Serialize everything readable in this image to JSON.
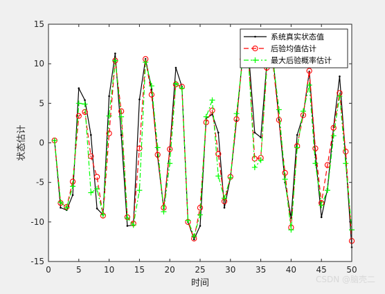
{
  "chart_data": {
    "type": "line",
    "xlabel": "时间",
    "ylabel": "状态估计",
    "xlim": [
      0,
      50
    ],
    "ylim": [
      -15,
      15
    ],
    "xticks": [
      0,
      5,
      10,
      15,
      20,
      25,
      30,
      35,
      40,
      45,
      50
    ],
    "yticks": [
      -15,
      -10,
      -5,
      0,
      5,
      10,
      15
    ],
    "grid": false,
    "legend_position": "top-right",
    "colors": {
      "figure_bg": "#f0f0f0",
      "axes_bg": "#ffffff",
      "true_state": "#000000",
      "posterior_mean": "#ff0000",
      "map_estimate": "#00ff00"
    },
    "x": [
      1,
      2,
      3,
      4,
      5,
      6,
      7,
      8,
      9,
      10,
      11,
      12,
      13,
      14,
      15,
      16,
      17,
      18,
      19,
      20,
      21,
      22,
      23,
      24,
      25,
      26,
      27,
      28,
      29,
      30,
      31,
      32,
      33,
      34,
      35,
      36,
      37,
      38,
      39,
      40,
      41,
      42,
      43,
      44,
      45,
      46,
      47,
      48,
      49,
      50
    ],
    "series": [
      {
        "name": "系统真实状态值",
        "style": "solid-point",
        "values": [
          0.3,
          -8.2,
          -8.5,
          -6.6,
          6.9,
          5.4,
          1.0,
          -8.3,
          -9.1,
          5.9,
          11.3,
          1.0,
          -10.5,
          -10.4,
          5.5,
          10.6,
          6.8,
          -1.8,
          -8.3,
          -0.8,
          9.5,
          7.1,
          -10.0,
          -12.2,
          -10.5,
          3.1,
          3.6,
          1.3,
          -8.2,
          -4.4,
          2.8,
          10.9,
          11.3,
          1.3,
          0.7,
          10.1,
          10.9,
          2.9,
          -5.0,
          -9.5,
          1.0,
          3.5,
          9.0,
          -1.5,
          -9.4,
          -5.8,
          2.0,
          8.4,
          -2.0,
          -13.2
        ]
      },
      {
        "name": "后验均值估计",
        "style": "dashed-circle",
        "values": [
          0.3,
          -7.6,
          -8.1,
          -4.9,
          3.4,
          3.9,
          -1.7,
          -4.3,
          -9.2,
          1.2,
          10.4,
          4.0,
          -9.4,
          -10.2,
          -0.7,
          10.6,
          6.1,
          -1.5,
          -8.2,
          -0.8,
          7.4,
          7.1,
          -10.0,
          -12.1,
          -8.2,
          2.6,
          4.1,
          -1.4,
          -7.4,
          -4.3,
          3.0,
          10.6,
          10.4,
          -2.0,
          -1.9,
          9.5,
          10.1,
          2.9,
          -3.8,
          -10.7,
          -0.4,
          3.5,
          9.1,
          -0.7,
          -7.6,
          -2.8,
          1.9,
          6.3,
          -1.1,
          -12.4
        ]
      },
      {
        "name": "最大后验概率估计",
        "style": "dashdot-plus",
        "values": [
          0.3,
          -7.5,
          -8.2,
          -5.5,
          5.0,
          4.9,
          -6.3,
          -5.8,
          -9.1,
          3.4,
          10.4,
          3.3,
          -9.5,
          -10.4,
          -6.0,
          10.2,
          7.2,
          -0.6,
          -8.7,
          -2.6,
          7.5,
          6.9,
          -9.8,
          -11.8,
          -9.1,
          3.3,
          5.4,
          -4.2,
          -7.0,
          -4.4,
          3.7,
          10.5,
          10.1,
          -3.1,
          -2.2,
          9.9,
          10.5,
          4.2,
          -4.6,
          -11.0,
          -0.6,
          4.0,
          7.3,
          -2.6,
          -7.9,
          -6.0,
          0.9,
          5.9,
          -2.6,
          -11.0
        ]
      }
    ]
  },
  "watermark": "CSDN @脑壳二"
}
